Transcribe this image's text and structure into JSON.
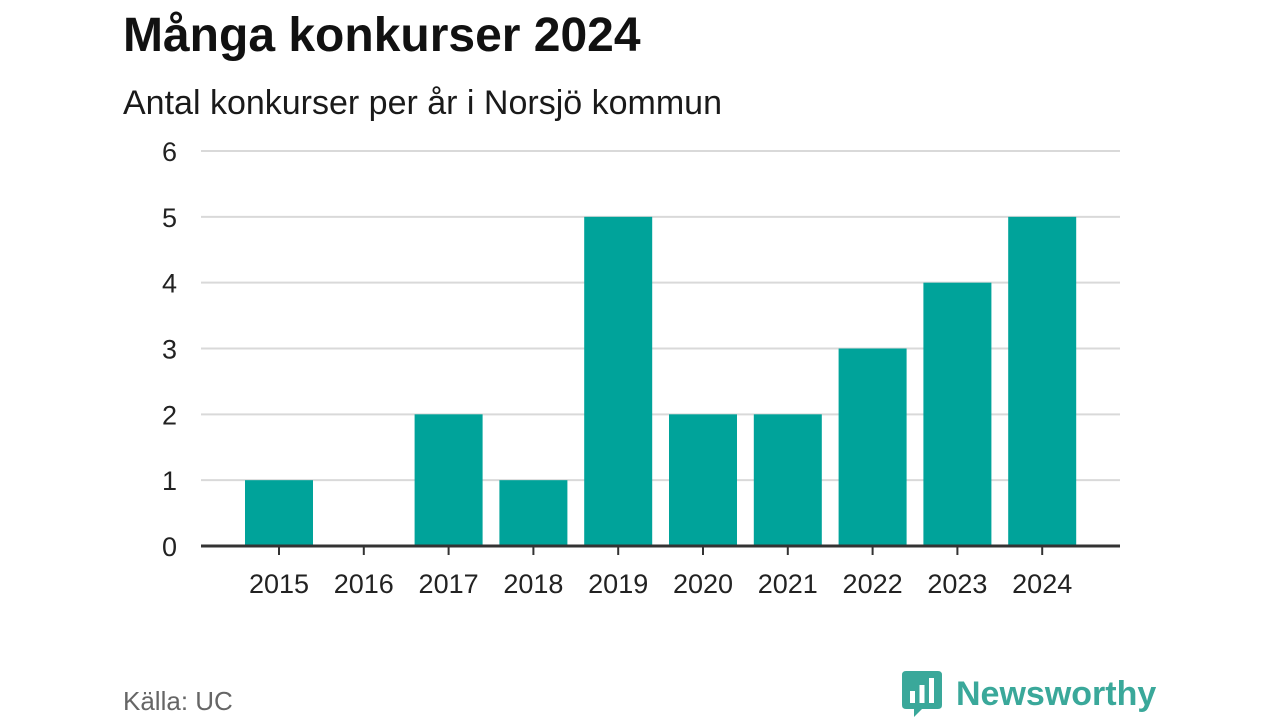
{
  "header": {
    "title": "Många konkurser 2024",
    "subtitle": "Antal konkurser per år i Norsjö kommun"
  },
  "footer": {
    "source": "Källa: UC",
    "brand": "Newsworthy"
  },
  "colors": {
    "bar": "#00a39a",
    "grid": "#d9d9d9",
    "axis": "#333333",
    "brand": "#3aa89a"
  },
  "chart_data": {
    "type": "bar",
    "title": "Många konkurser 2024",
    "subtitle": "Antal konkurser per år i Norsjö kommun",
    "categories": [
      "2015",
      "2016",
      "2017",
      "2018",
      "2019",
      "2020",
      "2021",
      "2022",
      "2023",
      "2024"
    ],
    "values": [
      1,
      0,
      2,
      1,
      5,
      2,
      2,
      3,
      4,
      5
    ],
    "ylim": [
      0,
      6
    ],
    "yticks": [
      0,
      1,
      2,
      3,
      4,
      5,
      6
    ],
    "grid": true,
    "legend": "none"
  }
}
